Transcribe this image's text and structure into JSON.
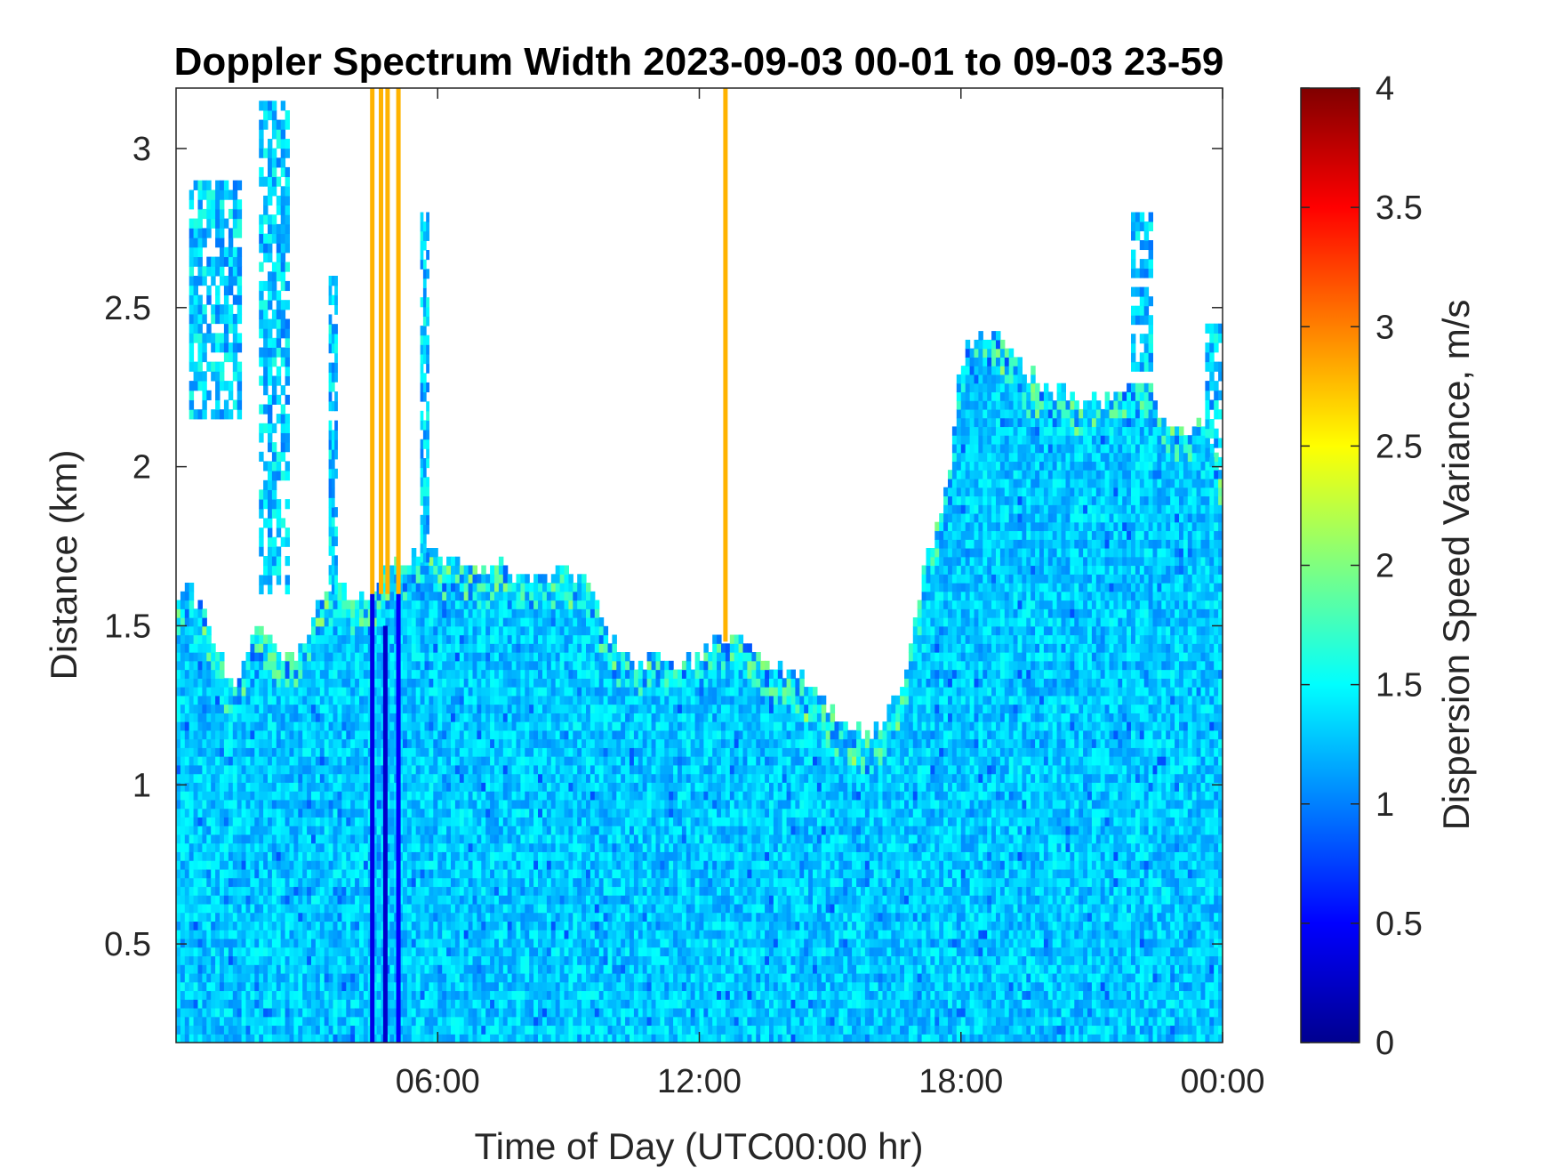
{
  "chart_data": {
    "type": "heatmap",
    "title": "Doppler Spectrum Width 2023-09-03 00-01 to 09-03 23-59",
    "xlabel": "Time of Day (UTC00:00 hr)",
    "ylabel": "Distance (km)",
    "x_unit": "hours",
    "xlim": [
      0,
      24
    ],
    "ylim": [
      0.19,
      3.19
    ],
    "x_ticks": [
      {
        "value": 6,
        "label": "06:00"
      },
      {
        "value": 12,
        "label": "12:00"
      },
      {
        "value": 18,
        "label": "18:00"
      },
      {
        "value": 24,
        "label": "00:00"
      }
    ],
    "y_ticks": [
      {
        "value": 0.5,
        "label": "0.5"
      },
      {
        "value": 1,
        "label": "1"
      },
      {
        "value": 1.5,
        "label": "1.5"
      },
      {
        "value": 2,
        "label": "2"
      },
      {
        "value": 2.5,
        "label": "2.5"
      },
      {
        "value": 3,
        "label": "3"
      }
    ],
    "colorbar": {
      "label": "Dispersion Speed Variance, m/s",
      "colormap": "jet",
      "range": [
        0,
        4
      ],
      "ticks": [
        {
          "value": 0,
          "label": "0"
        },
        {
          "value": 0.5,
          "label": "0.5"
        },
        {
          "value": 1,
          "label": "1"
        },
        {
          "value": 1.5,
          "label": "1.5"
        },
        {
          "value": 2,
          "label": "2"
        },
        {
          "value": 2.5,
          "label": "2.5"
        },
        {
          "value": 3,
          "label": "3"
        },
        {
          "value": 3.5,
          "label": "3.5"
        },
        {
          "value": 4,
          "label": "4"
        }
      ]
    },
    "typical_value": 1.3,
    "signal_top_profile": [
      [
        0.0,
        1.58
      ],
      [
        0.3,
        1.62
      ],
      [
        0.6,
        1.55
      ],
      [
        0.9,
        1.45
      ],
      [
        1.2,
        1.32
      ],
      [
        1.5,
        1.35
      ],
      [
        1.8,
        1.48
      ],
      [
        2.1,
        1.48
      ],
      [
        2.4,
        1.4
      ],
      [
        2.7,
        1.4
      ],
      [
        3.0,
        1.45
      ],
      [
        3.3,
        1.6
      ],
      [
        3.6,
        1.62
      ],
      [
        3.9,
        1.6
      ],
      [
        4.2,
        1.58
      ],
      [
        4.5,
        1.58
      ],
      [
        4.8,
        1.68
      ],
      [
        5.2,
        1.7
      ],
      [
        5.6,
        1.74
      ],
      [
        6.0,
        1.72
      ],
      [
        6.5,
        1.7
      ],
      [
        7.0,
        1.66
      ],
      [
        7.5,
        1.68
      ],
      [
        8.0,
        1.66
      ],
      [
        8.5,
        1.64
      ],
      [
        9.0,
        1.68
      ],
      [
        9.4,
        1.64
      ],
      [
        9.8,
        1.5
      ],
      [
        10.2,
        1.42
      ],
      [
        10.6,
        1.38
      ],
      [
        11.0,
        1.38
      ],
      [
        11.5,
        1.36
      ],
      [
        12.0,
        1.4
      ],
      [
        12.5,
        1.48
      ],
      [
        13.0,
        1.46
      ],
      [
        13.5,
        1.4
      ],
      [
        14.0,
        1.36
      ],
      [
        14.5,
        1.32
      ],
      [
        15.0,
        1.24
      ],
      [
        15.5,
        1.18
      ],
      [
        15.9,
        1.16
      ],
      [
        16.3,
        1.22
      ],
      [
        16.6,
        1.3
      ],
      [
        16.9,
        1.5
      ],
      [
        17.2,
        1.7
      ],
      [
        17.5,
        1.85
      ],
      [
        17.8,
        2.0
      ],
      [
        18.0,
        2.35
      ],
      [
        18.5,
        2.42
      ],
      [
        19.0,
        2.4
      ],
      [
        19.5,
        2.3
      ],
      [
        20.0,
        2.26
      ],
      [
        20.5,
        2.22
      ],
      [
        21.0,
        2.2
      ],
      [
        21.5,
        2.22
      ],
      [
        22.0,
        2.3
      ],
      [
        22.5,
        2.2
      ],
      [
        23.0,
        2.1
      ],
      [
        23.5,
        2.15
      ],
      [
        24.0,
        1.95
      ]
    ],
    "upper_features": [
      {
        "x_start": 0.3,
        "x_end": 1.5,
        "y_bottom": 2.15,
        "y_top": 2.9
      },
      {
        "x_start": 1.9,
        "x_end": 2.6,
        "y_bottom": 1.6,
        "y_top": 3.15
      },
      {
        "x_start": 3.5,
        "x_end": 3.7,
        "y_bottom": 1.6,
        "y_top": 2.6
      },
      {
        "x_start": 5.6,
        "x_end": 5.8,
        "y_bottom": 1.7,
        "y_top": 2.8
      },
      {
        "x_start": 21.9,
        "x_end": 22.4,
        "y_bottom": 2.3,
        "y_top": 2.8
      },
      {
        "x_start": 23.6,
        "x_end": 24.0,
        "y_bottom": 2.0,
        "y_top": 2.45
      }
    ],
    "vertical_bands": [
      {
        "x": 4.5,
        "value": 0.4,
        "y_bottom": 0.19,
        "y_top": 1.6
      },
      {
        "x": 4.8,
        "value": 0.3,
        "y_bottom": 0.19,
        "y_top": 1.5
      },
      {
        "x": 5.1,
        "value": 0.5,
        "y_bottom": 0.19,
        "y_top": 1.6
      },
      {
        "x": 4.5,
        "value": 2.8,
        "y_bottom": 1.6,
        "y_top": 3.19
      },
      {
        "x": 4.7,
        "value": 2.8,
        "y_bottom": 1.6,
        "y_top": 3.19
      },
      {
        "x": 4.85,
        "value": 2.8,
        "y_bottom": 1.6,
        "y_top": 3.19
      },
      {
        "x": 5.1,
        "value": 2.8,
        "y_bottom": 1.6,
        "y_top": 3.19
      },
      {
        "x": 12.6,
        "value": 2.8,
        "y_bottom": 1.45,
        "y_top": 3.19
      }
    ]
  }
}
